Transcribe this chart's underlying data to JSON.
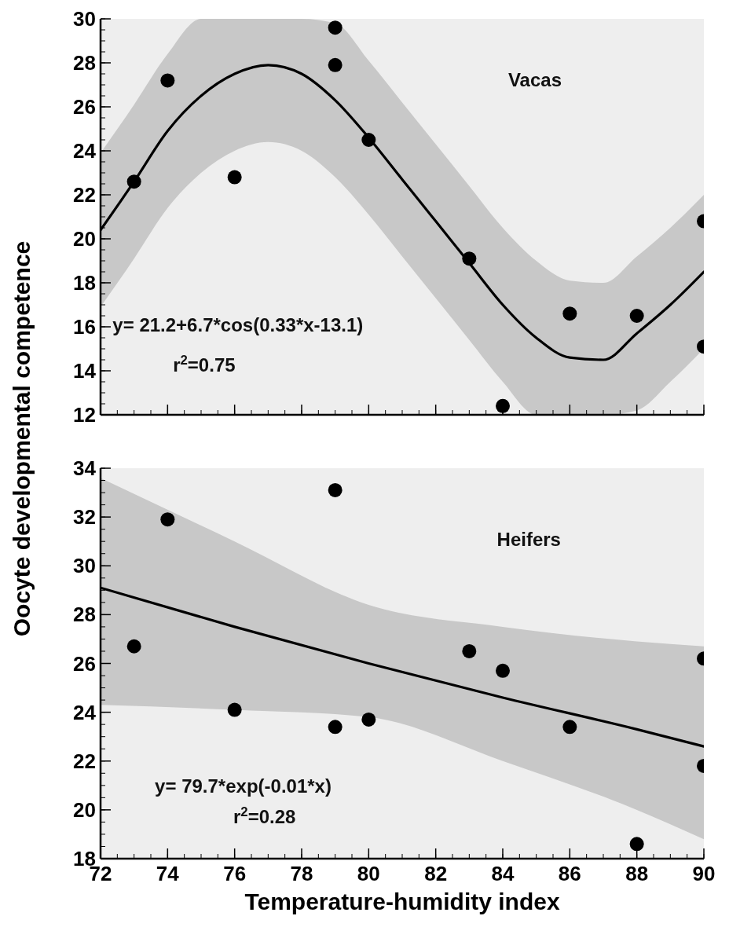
{
  "chart_data": [
    {
      "type": "scatter",
      "ylabel": "Oocyte developmental competence",
      "annotations": [
        "Vacas",
        "y= 21.2+6.7*cos(0.33*x-13.1)",
        "r$^{2}$=0.75"
      ],
      "xlim": [
        72,
        90
      ],
      "xticks": [
        72,
        74,
        76,
        78,
        80,
        82,
        84,
        86,
        88,
        90
      ],
      "ylim": [
        12,
        30
      ],
      "yticks": [
        12,
        14,
        16,
        18,
        20,
        22,
        24,
        26,
        28,
        30
      ],
      "tick_labels": "y",
      "grid": false,
      "series": [
        {
          "type": "line",
          "color": "#000000",
          "x": [
            72,
            73,
            74,
            75,
            76,
            77,
            78,
            79,
            80,
            81,
            82,
            83,
            84,
            85,
            86,
            87,
            88,
            89,
            90
          ],
          "values": [
            20.4,
            22.6,
            24.9,
            26.5,
            27.5,
            27.9,
            27.5,
            26.3,
            24.6,
            22.7,
            20.8,
            18.9,
            17.0,
            15.5,
            14.6,
            14.5,
            15.7,
            17.0,
            18.5
          ],
          "lower": [
            16.9,
            19.1,
            21.4,
            23,
            24,
            24.4,
            24,
            22.8,
            21.1,
            19.2,
            17.3,
            15.4,
            13.5,
            12,
            12,
            12,
            12.2,
            13.5,
            15
          ],
          "upper": [
            23.9,
            26.1,
            28.4,
            30,
            30,
            30,
            30,
            29.8,
            28.1,
            26.2,
            24.3,
            22.4,
            20.5,
            19,
            18.1,
            18,
            19.2,
            20.5,
            22
          ],
          "line_style": "solid"
        },
        {
          "color": "#000000",
          "marker": "circle",
          "x": [
            73,
            74,
            76,
            79,
            79,
            80,
            83,
            84,
            86,
            88,
            90,
            90
          ],
          "values": [
            22.6,
            27.2,
            22.8,
            29.6,
            27.9,
            24.5,
            19.1,
            12.4,
            16.6,
            16.5,
            20.8,
            15.1
          ]
        }
      ]
    },
    {
      "type": "scatter",
      "xlabel": "Temperature-humidity index",
      "annotations": [
        "Heifers",
        "y= 79.7*exp(-0.01*x)",
        "r$^{2}$=0.28"
      ],
      "xlim": [
        72,
        90
      ],
      "xticks": [
        72,
        74,
        76,
        78,
        80,
        82,
        84,
        86,
        88,
        90
      ],
      "ylim": [
        18,
        34
      ],
      "yticks": [
        18,
        20,
        22,
        24,
        26,
        28,
        30,
        32,
        34
      ],
      "grid": false,
      "series": [
        {
          "type": "line",
          "color": "#000000",
          "x": [
            72,
            76,
            80,
            84,
            88,
            90
          ],
          "values": [
            29.1,
            27.5,
            26.0,
            24.6,
            23.3,
            22.6
          ],
          "lower": [
            24.3,
            24.1,
            23.8,
            22,
            20,
            18.8
          ],
          "upper": [
            33.6,
            31,
            28.4,
            27.5,
            26.9,
            26.7
          ],
          "line_style": "solid"
        },
        {
          "color": "#000000",
          "marker": "circle",
          "x": [
            73,
            74,
            76,
            79,
            79,
            80,
            83,
            84,
            86,
            88,
            90,
            90
          ],
          "values": [
            26.7,
            31.9,
            24.1,
            33.1,
            23.4,
            23.7,
            26.5,
            25.7,
            23.4,
            18.6,
            26.2,
            21.8
          ]
        }
      ]
    }
  ]
}
